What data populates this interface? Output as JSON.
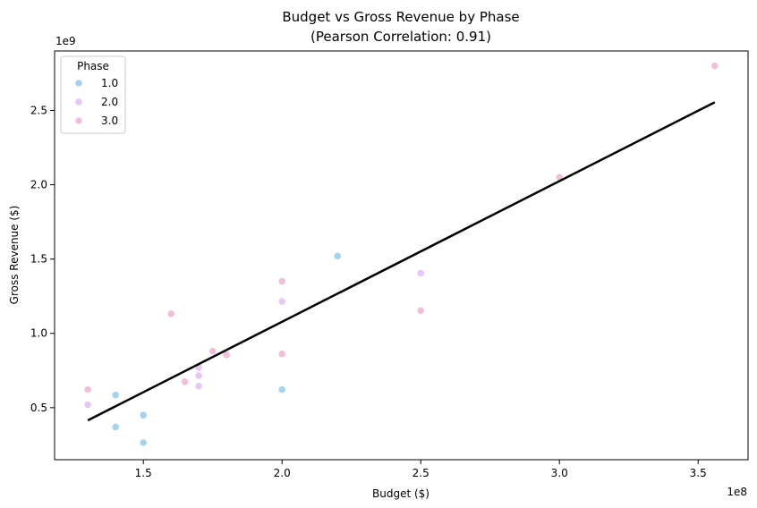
{
  "chart_data": {
    "type": "scatter",
    "title": "Budget vs Gross Revenue by Phase",
    "subtitle": "(Pearson Correlation: 0.91)",
    "xlabel": "Budget ($)",
    "ylabel": "Gross Revenue ($)",
    "x_offset_label": "1e8",
    "y_offset_label": "1e9",
    "x_scale": 100000000,
    "y_scale": 1000000000,
    "xlim": [
      118000000,
      368000000
    ],
    "ylim": [
      150000000,
      2900000000
    ],
    "x_ticks": [
      150000000,
      200000000,
      250000000,
      300000000,
      350000000
    ],
    "x_tick_labels": [
      "1.5",
      "2.0",
      "2.5",
      "3.0",
      "3.5"
    ],
    "y_ticks": [
      500000000,
      1000000000,
      1500000000,
      2000000000,
      2500000000
    ],
    "y_tick_labels": [
      "0.5",
      "1.0",
      "1.5",
      "2.0",
      "2.5"
    ],
    "grid": false,
    "legend": {
      "title": "Phase",
      "placement": "top-left",
      "entries": [
        "1.0",
        "2.0",
        "3.0"
      ]
    },
    "series": [
      {
        "name": "1.0",
        "color": "#a6d3ec",
        "points": [
          {
            "x": 140000000,
            "y": 585000000
          },
          {
            "x": 140000000,
            "y": 370000000
          },
          {
            "x": 150000000,
            "y": 450000000
          },
          {
            "x": 150000000,
            "y": 265000000
          },
          {
            "x": 200000000,
            "y": 622000000
          },
          {
            "x": 220000000,
            "y": 1520000000
          }
        ]
      },
      {
        "name": "2.0",
        "color": "#e8c6f5",
        "points": [
          {
            "x": 130000000,
            "y": 520000000
          },
          {
            "x": 160000000,
            "y": 1130000000
          },
          {
            "x": 170000000,
            "y": 770000000
          },
          {
            "x": 170000000,
            "y": 715000000
          },
          {
            "x": 170000000,
            "y": 645000000
          },
          {
            "x": 200000000,
            "y": 1215000000
          },
          {
            "x": 250000000,
            "y": 1405000000
          }
        ]
      },
      {
        "name": "3.0",
        "color": "#f0bfdc",
        "points": [
          {
            "x": 130000000,
            "y": 622000000
          },
          {
            "x": 160000000,
            "y": 1132000000
          },
          {
            "x": 165000000,
            "y": 675000000
          },
          {
            "x": 175000000,
            "y": 880000000
          },
          {
            "x": 180000000,
            "y": 855000000
          },
          {
            "x": 200000000,
            "y": 1350000000
          },
          {
            "x": 200000000,
            "y": 862000000
          },
          {
            "x": 250000000,
            "y": 1153000000
          },
          {
            "x": 300000000,
            "y": 2050000000
          },
          {
            "x": 356000000,
            "y": 2800000000
          }
        ]
      }
    ],
    "regression_line": {
      "color": "#000000",
      "x": [
        130000000,
        356000000
      ],
      "y": [
        415000000,
        2555000000
      ]
    }
  }
}
